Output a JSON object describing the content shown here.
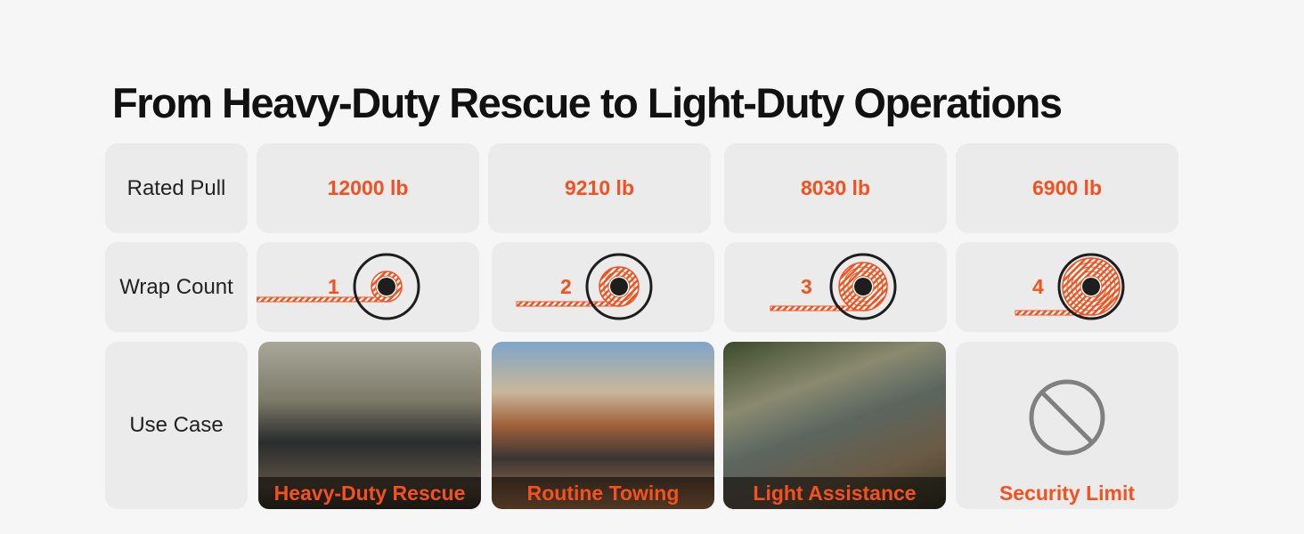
{
  "title": "From Heavy-Duty Rescue to Light-Duty Operations",
  "rows": {
    "rated_pull": "Rated Pull",
    "wrap_count": "Wrap Count",
    "use_case": "Use Case"
  },
  "columns": [
    {
      "rated_pull": "12000 lb",
      "wrap": "1",
      "use_case": "Heavy-Duty Rescue",
      "image": "pickup truck in muddy water"
    },
    {
      "rated_pull": "9210 lb",
      "wrap": "2",
      "use_case": "Routine Towing",
      "image": "jeep on desert rocks"
    },
    {
      "rated_pull": "8030 lb",
      "wrap": "3",
      "use_case": "Light Assistance",
      "image": "suv in forest with log"
    },
    {
      "rated_pull": "6900 lb",
      "wrap": "4",
      "use_case": "Security Limit",
      "image": "prohibited-icon"
    }
  ],
  "colors": {
    "accent": "#f4511e",
    "cell": "#ebebeb",
    "background": "#f6f6f6"
  }
}
